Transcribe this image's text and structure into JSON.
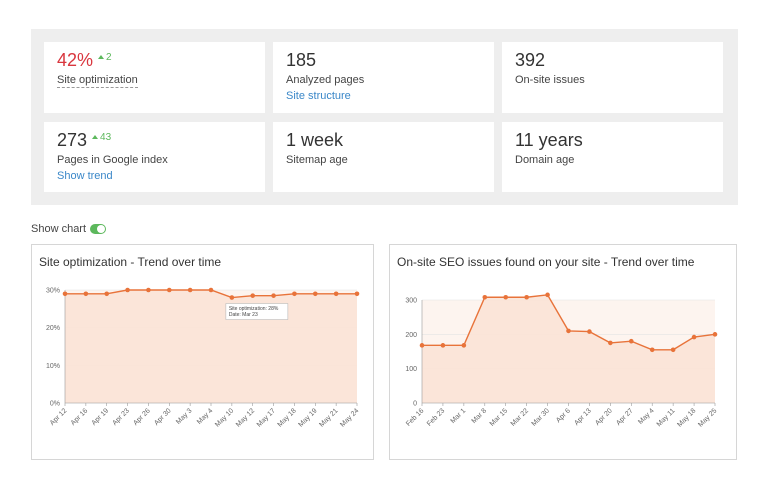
{
  "stats": {
    "site_optimization": {
      "value": "42%",
      "delta": "2",
      "label": "Site optimization"
    },
    "analyzed_pages": {
      "value": "185",
      "label": "Analyzed pages",
      "link": "Site structure"
    },
    "onsite_issues": {
      "value": "392",
      "label": "On-site issues"
    },
    "google_index": {
      "value": "273",
      "delta": "43",
      "label": "Pages in Google index",
      "link": "Show trend"
    },
    "sitemap_age": {
      "value": "1 week",
      "label": "Sitemap age"
    },
    "domain_age": {
      "value": "11 years",
      "label": "Domain age"
    }
  },
  "show_chart": {
    "label": "Show chart",
    "enabled": true
  },
  "colors": {
    "accent": "#e8733a",
    "fill": "#fbe3d6",
    "red": "#d9363e",
    "green": "#5cb85c",
    "link": "#3a87c8"
  },
  "chart_data": [
    {
      "type": "area",
      "title": "Site optimization - Trend over time",
      "x": [
        "Apr 12",
        "Apr 16",
        "Apr 19",
        "Apr 23",
        "Apr 26",
        "Apr 30",
        "May 3",
        "May 4",
        "May 10",
        "May 12",
        "May 17",
        "May 18",
        "May 19",
        "May 21",
        "May 24"
      ],
      "values": [
        29,
        29,
        29,
        30,
        30,
        30,
        30,
        30,
        28,
        28.5,
        28.5,
        29,
        29,
        29,
        29
      ],
      "y_ticks": [
        "0%",
        "10%",
        "20%",
        "30%"
      ],
      "ylim": [
        0,
        30
      ],
      "tooltip": {
        "line1": "Site optimization: 28%",
        "line2": "Date: Mar 23"
      }
    },
    {
      "type": "area",
      "title": "On-site SEO issues found on your site - Trend over time",
      "x": [
        "Feb 16",
        "Feb 23",
        "Mar 1",
        "Mar 8",
        "Mar 15",
        "Mar 22",
        "Mar 30",
        "Apr 6",
        "Apr 13",
        "Apr 20",
        "Apr 27",
        "May 4",
        "May 11",
        "May 18",
        "May 25"
      ],
      "values": [
        168,
        168,
        168,
        308,
        308,
        308,
        315,
        210,
        208,
        175,
        180,
        155,
        155,
        192,
        200
      ],
      "y_ticks": [
        "0",
        "100",
        "200",
        "300"
      ],
      "ylim": [
        0,
        300
      ]
    }
  ]
}
